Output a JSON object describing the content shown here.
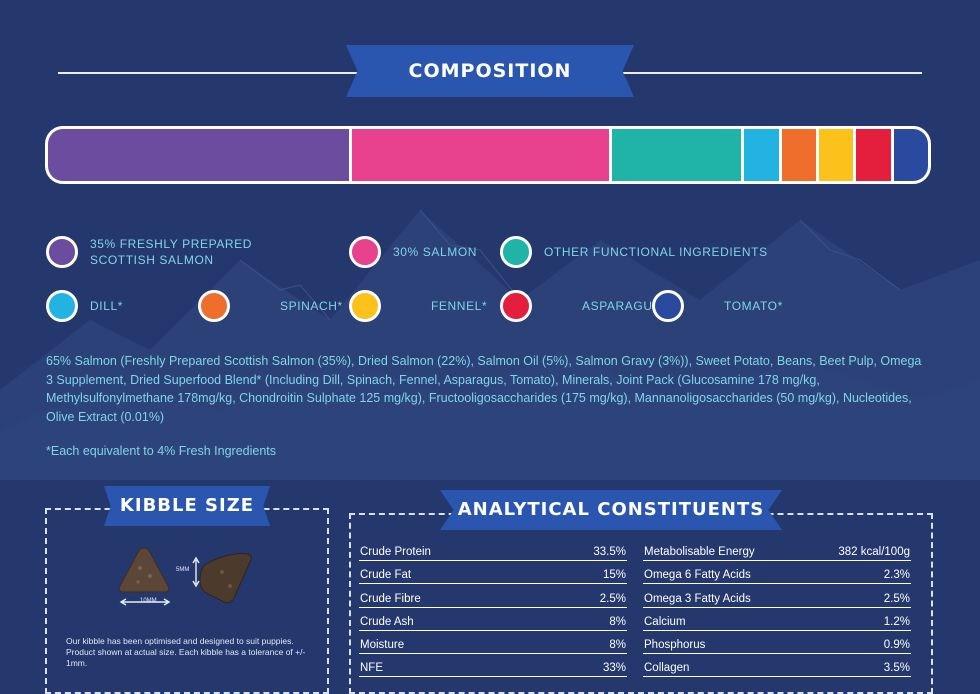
{
  "composition": {
    "title": "COMPOSITION",
    "bar_segments": [
      {
        "name": "salmon-fresh",
        "percent": 35,
        "color": "#6b4c9e"
      },
      {
        "name": "salmon",
        "percent": 30,
        "color": "#e8428e"
      },
      {
        "name": "other-functional",
        "percent": 15,
        "color": "#20b3a8"
      },
      {
        "name": "dill",
        "percent": 4,
        "color": "#23b3e3"
      },
      {
        "name": "spinach",
        "percent": 4,
        "color": "#ef6e2c"
      },
      {
        "name": "fennel",
        "percent": 4,
        "color": "#fcc21b"
      },
      {
        "name": "asparagus",
        "percent": 4,
        "color": "#e41f3d"
      },
      {
        "name": "tomato",
        "percent": 4,
        "color": "#2a4aa0"
      }
    ],
    "legend": [
      {
        "label": "35% FRESHLY PREPARED SCOTTISH SALMON",
        "color": "#6b4c9e"
      },
      {
        "label": "30% SALMON",
        "color": "#e8428e"
      },
      {
        "label": "OTHER FUNCTIONAL INGREDIENTS",
        "color": "#20b3a8"
      },
      {
        "label": "DILL*",
        "color": "#23b3e3"
      },
      {
        "label": "SPINACH*",
        "color": "#ef6e2c"
      },
      {
        "label": "FENNEL*",
        "color": "#fcc21b"
      },
      {
        "label": "ASPARAGUS*",
        "color": "#e41f3d"
      },
      {
        "label": "TOMATO*",
        "color": "#2a4aa0"
      }
    ],
    "ingredients_text": "65% Salmon (Freshly Prepared Scottish Salmon (35%), Dried Salmon (22%), Salmon Oil (5%), Salmon Gravy (3%)), Sweet Potato, Beans, Beet Pulp, Omega 3 Supplement, Dried Superfood Blend* (Including Dill, Spinach, Fennel, Asparagus, Tomato), Minerals,  Joint Pack (Glucosamine 178 mg/kg,  Methylsulfonylmethane 178mg/kg, Chondroitin Sulphate 125 mg/kg), Fructooligosaccharides (175 mg/kg), Mannanoligosaccharides (50 mg/kg), Nucleotides, Olive Extract (0.01%)",
    "footnote": "*Each equivalent to 4% Fresh Ingredients"
  },
  "kibble": {
    "title": "KIBBLE SIZE",
    "height_label": "5MM",
    "width_label": "10MM",
    "note": "Our kibble has been optimised and designed to suit puppies. Product shown at actual size. Each kibble has a tolerance of +/- 1mm."
  },
  "analytical": {
    "title": "ANALYTICAL CONSTITUENTS",
    "left": [
      {
        "name": "Crude Protein",
        "value": "33.5%"
      },
      {
        "name": "Crude Fat",
        "value": "15%"
      },
      {
        "name": "Crude Fibre",
        "value": "2.5%"
      },
      {
        "name": "Crude Ash",
        "value": "8%"
      },
      {
        "name": "Moisture",
        "value": "8%"
      },
      {
        "name": "NFE",
        "value": "33%"
      }
    ],
    "right": [
      {
        "name": "Metabolisable Energy",
        "value": "382 kcal/100g"
      },
      {
        "name": "Omega 6 Fatty Acids",
        "value": "2.3%"
      },
      {
        "name": "Omega 3 Fatty Acids",
        "value": "2.5%"
      },
      {
        "name": "Calcium",
        "value": "1.2%"
      },
      {
        "name": "Phosphorus",
        "value": "0.9%"
      },
      {
        "name": "Collagen",
        "value": "3.5%"
      }
    ]
  }
}
